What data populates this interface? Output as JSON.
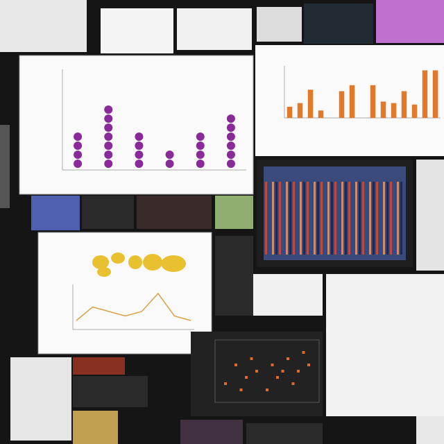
{
  "panels": [
    {
      "type": "dots",
      "color": "#8a2a9a",
      "values": [
        4,
        7,
        4,
        2,
        4,
        6
      ]
    },
    {
      "type": "bar",
      "color": "#e07a2a",
      "values": [
        15,
        20,
        38,
        10,
        0,
        36,
        44,
        0,
        44,
        22,
        20,
        36,
        18,
        64,
        64
      ],
      "ylim": [
        0,
        70
      ]
    },
    {
      "type": "line",
      "color": "#d9a24a",
      "values": [
        2,
        5,
        4,
        3,
        4,
        8,
        3,
        2
      ],
      "ylim": [
        0,
        10
      ]
    },
    {
      "type": "scatter",
      "color": "#e06a2a",
      "x": [
        1,
        2,
        3,
        3.5,
        4,
        5,
        5.5,
        6,
        7,
        7.5,
        8,
        8.5,
        9,
        2.5,
        6.5
      ],
      "y": [
        3,
        6,
        4,
        7,
        5,
        2,
        6,
        4,
        7,
        3,
        5,
        8,
        6,
        2,
        5
      ],
      "xlim": [
        0,
        10
      ],
      "ylim": [
        0,
        10
      ]
    }
  ]
}
